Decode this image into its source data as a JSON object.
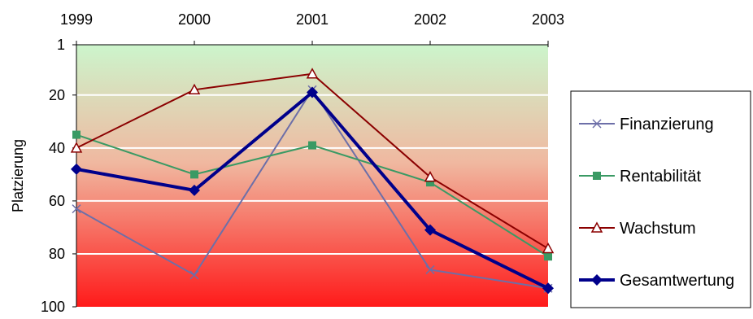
{
  "chart_data": {
    "type": "line",
    "title": "",
    "xlabel": "",
    "ylabel": "Platzierung",
    "x": [
      1999,
      2000,
      2001,
      2002,
      2003
    ],
    "x_tick_labels": [
      "1999",
      "2000",
      "2001",
      "2002",
      "2003"
    ],
    "y_tick_labels": [
      "1",
      "20",
      "40",
      "60",
      "80",
      "100"
    ],
    "ylim": [
      1,
      100
    ],
    "y_reversed": true,
    "x_axis_position": "top",
    "grid": "horizontal",
    "background_gradient": {
      "top": "#ccf5cc",
      "middle": "#f0b8a0",
      "bottom": "#ff1a1a"
    },
    "legend": {
      "position": "right"
    },
    "series": [
      {
        "name": "Finanzierung",
        "values": [
          63,
          88,
          18,
          86,
          93
        ],
        "color": "#6d6fa8",
        "marker": "x",
        "line_width": 2
      },
      {
        "name": "Rentabilität",
        "values": [
          35,
          50,
          39,
          53,
          81
        ],
        "color": "#3a9a64",
        "marker": "square",
        "line_width": 2
      },
      {
        "name": "Wachstum",
        "values": [
          40,
          18,
          12,
          51,
          78
        ],
        "color": "#8b0000",
        "marker": "triangle-open",
        "line_width": 2
      },
      {
        "name": "Gesamtwertung",
        "values": [
          48,
          56,
          19,
          71,
          93
        ],
        "color": "#00008b",
        "marker": "diamond",
        "line_width": 4
      }
    ]
  }
}
